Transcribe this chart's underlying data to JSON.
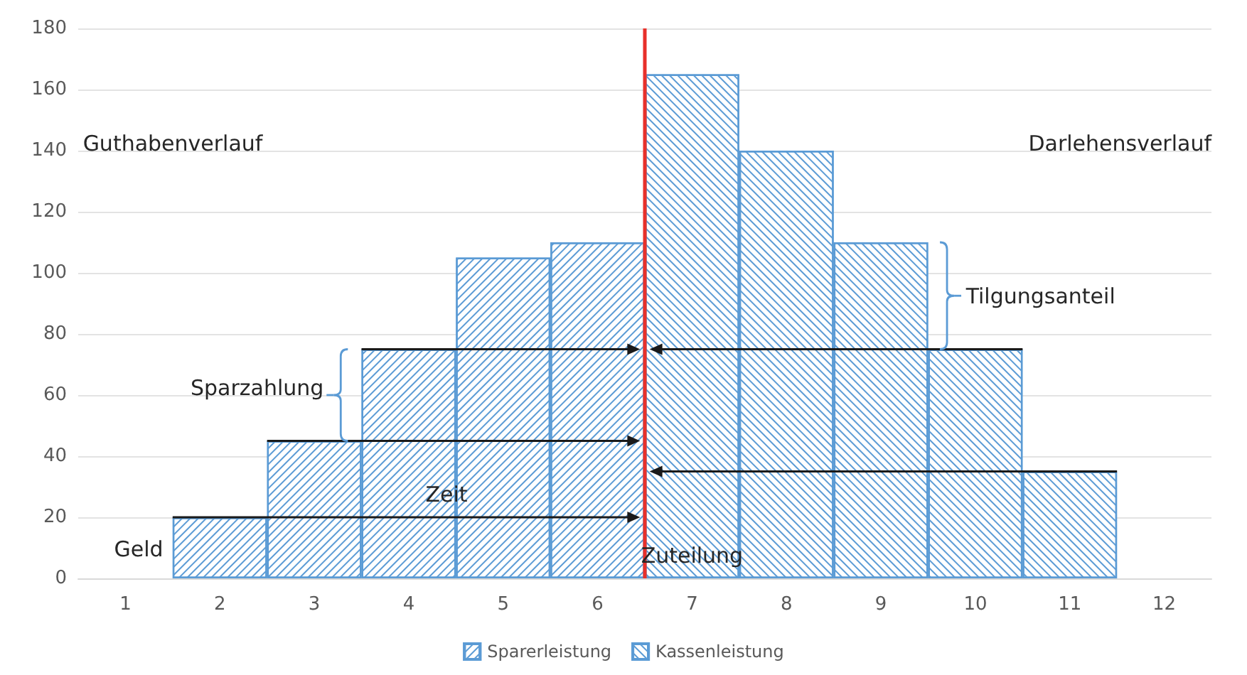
{
  "chart_data": {
    "type": "bar",
    "xlim": [
      0.5,
      12.5
    ],
    "xticks": [
      1,
      2,
      3,
      4,
      5,
      6,
      7,
      8,
      9,
      10,
      11,
      12
    ],
    "ylim": [
      0,
      180
    ],
    "yticks": [
      0,
      20,
      40,
      60,
      80,
      100,
      120,
      140,
      160,
      180
    ],
    "grid": "y",
    "legend": "bottom",
    "series": [
      {
        "name": "Sparerleistung",
        "color": "#5b9bd5",
        "x": [
          2,
          3,
          4,
          5,
          6
        ],
        "values": [
          20,
          45,
          75,
          105,
          110
        ]
      },
      {
        "name": "Kassenleistung",
        "color": "#5b9bd5",
        "x": [
          7,
          8,
          9,
          10,
          11
        ],
        "values": [
          165,
          140,
          110,
          75,
          35
        ]
      }
    ],
    "ref_lines": [
      {
        "axis": "x",
        "value": 6.5,
        "color": "#e8302a"
      }
    ],
    "annotations": [
      "Guthabenverlauf",
      "Darlehensverlauf",
      "Tilgungsanteil",
      "Sparzahlung",
      "Zeit",
      "Geld",
      "Zuteilung"
    ]
  }
}
